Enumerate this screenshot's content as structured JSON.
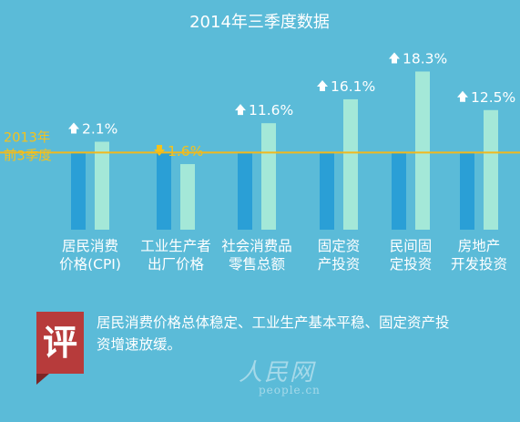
{
  "chart_data": {
    "type": "bar",
    "title": "2014年三季度数据",
    "categories": [
      [
        "居民消费",
        "价格(CPI)"
      ],
      [
        "工业生产者",
        "出厂价格"
      ],
      [
        "社会消费品",
        "零售总额"
      ],
      [
        "固定资",
        "产投资"
      ],
      [
        "民间固",
        "定投资"
      ],
      [
        "房地产",
        "开发投资"
      ]
    ],
    "series": [
      {
        "name": "2013年前3季度",
        "values": [
          100,
          100,
          100,
          100,
          100,
          100
        ]
      },
      {
        "name": "",
        "values": [
          114,
          85,
          138,
          169,
          205,
          155
        ]
      }
    ],
    "changes": [
      {
        "label": "2.1%",
        "direction": "up"
      },
      {
        "label": "1.6%",
        "direction": "down"
      },
      {
        "label": "11.6%",
        "direction": "up"
      },
      {
        "label": "16.1%",
        "direction": "up"
      },
      {
        "label": "18.3%",
        "direction": "up"
      },
      {
        "label": "12.5%",
        "direction": "up"
      }
    ],
    "reference_line": {
      "label": [
        "2013年",
        "前3季度"
      ],
      "value": 100
    },
    "ylim": [
      0,
      215
    ],
    "grid": false,
    "colors": {
      "base": "#2a9fd6",
      "current": "#a4e8d8",
      "ref_line": "#f2b81b",
      "up_arrow": "#ffffff",
      "down_arrow": "#f5c21b"
    }
  },
  "comment": {
    "badge": "评",
    "text": "居民消费价格总体稳定、工业生产基本平稳、固定资产投资增速放缓。"
  },
  "watermark": {
    "cn": "人民网",
    "en": "people.cn"
  },
  "colors": {
    "background": "#5bbbd8",
    "badge": "#b73b3b"
  }
}
